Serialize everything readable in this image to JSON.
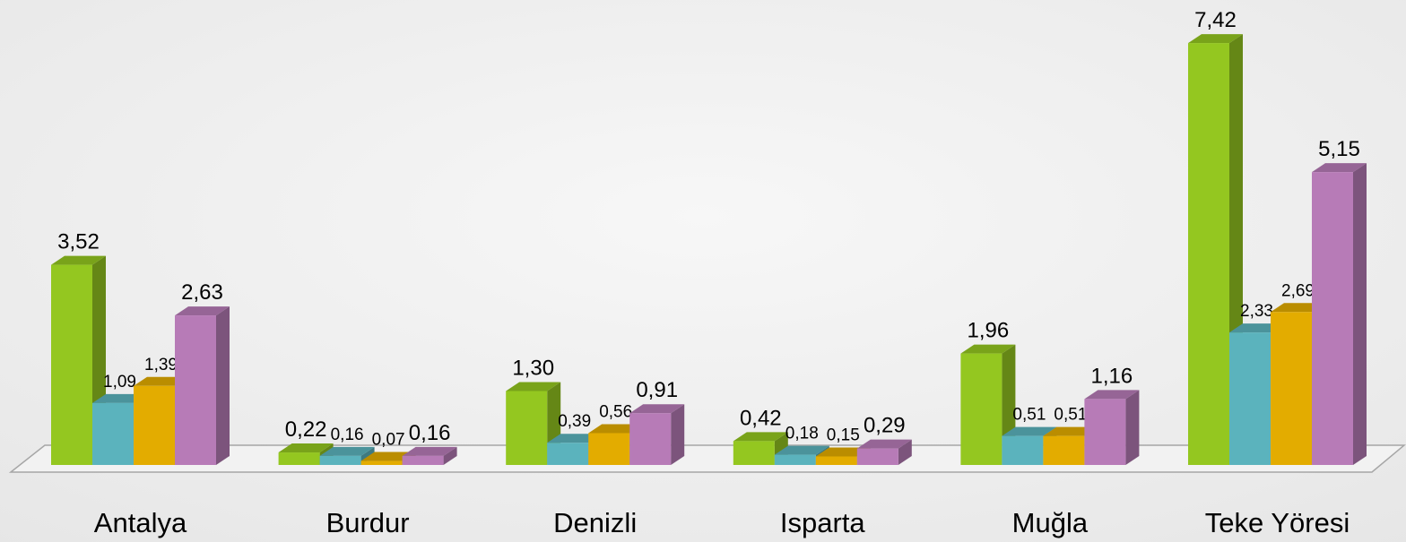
{
  "chart_data": {
    "type": "bar3d",
    "categories": [
      "Antalya",
      "Burdur",
      "Denizli",
      "Isparta",
      "Muğla",
      "Teke Yöresi"
    ],
    "ylim": [
      0,
      7.5
    ],
    "series": [
      {
        "color": "#94c720",
        "values": [
          3.52,
          0.22,
          1.3,
          0.42,
          1.96,
          7.42
        ],
        "value_labels": [
          "3,52",
          "0,22",
          "1,30",
          "0,42",
          "1,96",
          "7,42"
        ]
      },
      {
        "color": "#5bb3bd",
        "values": [
          1.09,
          0.16,
          0.39,
          0.18,
          0.51,
          2.33
        ],
        "value_labels": [
          "1,09",
          "0,16",
          "0,39",
          "0,18",
          "0,51",
          "2,33"
        ]
      },
      {
        "color": "#e3ac00",
        "values": [
          1.39,
          0.07,
          0.56,
          0.15,
          0.51,
          2.69
        ],
        "value_labels": [
          "1,39",
          "0,07",
          "0,56",
          "0,15",
          "0,51",
          "2,69"
        ]
      },
      {
        "color": "#b77bb7",
        "values": [
          2.63,
          0.16,
          0.91,
          0.29,
          1.16,
          5.15
        ],
        "value_labels": [
          "2,63",
          "0,16",
          "0,91",
          "0,29",
          "1,16",
          "5,15"
        ]
      }
    ]
  }
}
